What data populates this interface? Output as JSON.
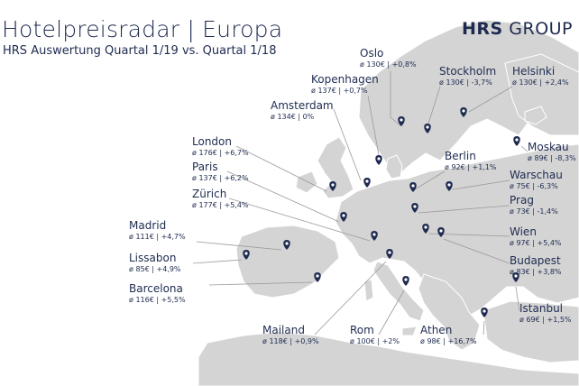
{
  "header": {
    "title": "Hotelpreisradar | Europa",
    "subtitle": "HRS Auswertung Quartal 1/19 vs. Quartal 1/18",
    "logo_bold": "HRS",
    "logo_rest": "GROUP"
  },
  "colors": {
    "land": "#d4d4d4",
    "border": "#ffffff",
    "text": "#1e2b50",
    "pin": "#1e2b50",
    "leader": "#9a9a9a"
  },
  "cities": [
    {
      "id": "oslo",
      "name": "Oslo",
      "value": "ø 130€ | +0,8%"
    },
    {
      "id": "kopenhagen",
      "name": "Kopenhagen",
      "value": "ø 137€ | +0,7%"
    },
    {
      "id": "amsterdam",
      "name": "Amsterdam",
      "value": "ø 134€ | 0%"
    },
    {
      "id": "stockholm",
      "name": "Stockholm",
      "value": "ø 130€ | -3,7%"
    },
    {
      "id": "helsinki",
      "name": "Helsinki",
      "value": "ø 130€ | +2,4%"
    },
    {
      "id": "moskau",
      "name": "Moskau",
      "value": "ø 89€ | -8,3%"
    },
    {
      "id": "berlin",
      "name": "Berlin",
      "value": "ø 92€ | +1,1%"
    },
    {
      "id": "warschau",
      "name": "Warschau",
      "value": "ø 75€ | -6,3%"
    },
    {
      "id": "prag",
      "name": "Prag",
      "value": "ø 73€ | -1,4%"
    },
    {
      "id": "wien",
      "name": "Wien",
      "value": "ø 97€ | +5,4%"
    },
    {
      "id": "budapest",
      "name": "Budapest",
      "value": "ø 83€ | +3,8%"
    },
    {
      "id": "istanbul",
      "name": "Istanbul",
      "value": "ø 69€ | +1,5%"
    },
    {
      "id": "london",
      "name": "London",
      "value": "ø 176€ | +6,7%"
    },
    {
      "id": "paris",
      "name": "Paris",
      "value": "ø 137€ | +6,2%"
    },
    {
      "id": "zuerich",
      "name": "Zürich",
      "value": "ø 177€ | +5,4%"
    },
    {
      "id": "madrid",
      "name": "Madrid",
      "value": "ø 111€ | +4,7%"
    },
    {
      "id": "lissabon",
      "name": "Lissabon",
      "value": "ø 85€ | +4,9%"
    },
    {
      "id": "barcelona",
      "name": "Barcelona",
      "value": "ø 116€ | +5,5%"
    },
    {
      "id": "mailand",
      "name": "Mailand",
      "value": "ø 118€ | +0,9%"
    },
    {
      "id": "rom",
      "name": "Rom",
      "value": "ø 100€ | +2%"
    },
    {
      "id": "athen",
      "name": "Athen",
      "value": "ø 98€ | +16,7%"
    }
  ]
}
